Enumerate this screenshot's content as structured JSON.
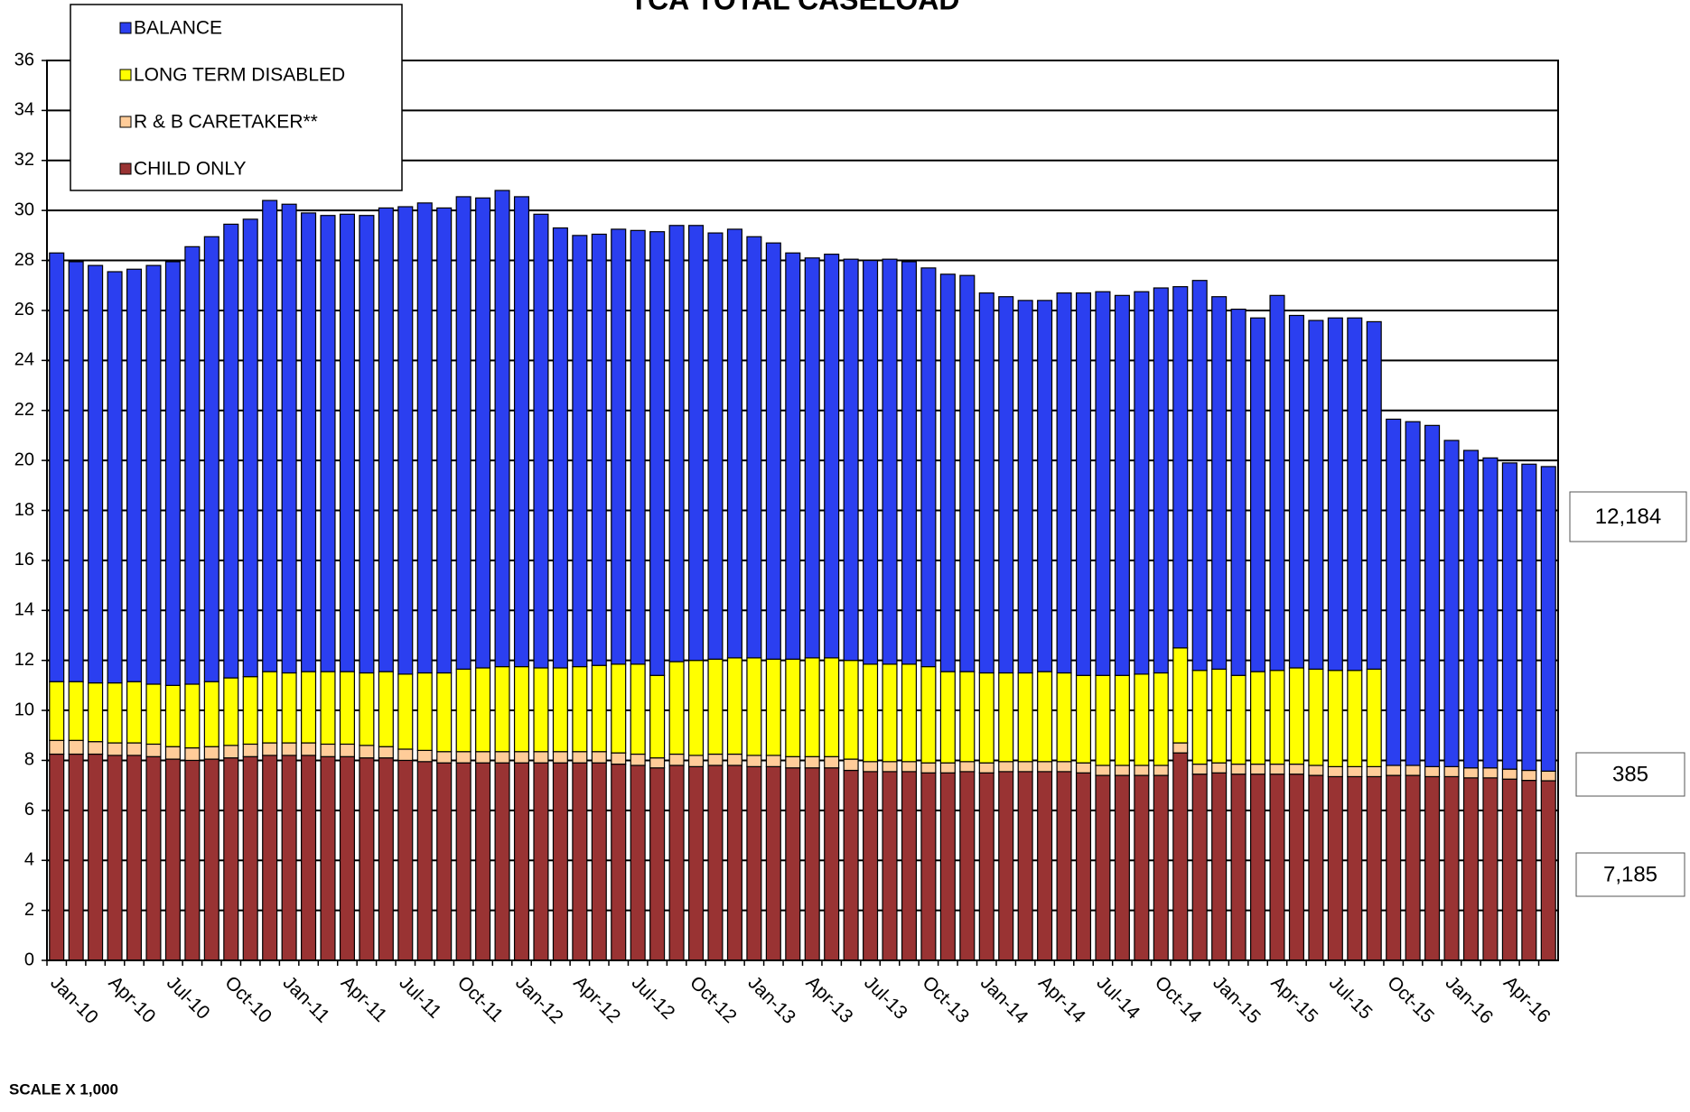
{
  "chart_data": {
    "type": "stacked_bar",
    "title": "TCA TOTAL CASELOAD",
    "annotation": "SCALE X 1,000",
    "categories": [
      "Jan-10",
      null,
      null,
      "Apr-10",
      null,
      null,
      "Jul-10",
      null,
      null,
      "Oct-10",
      null,
      null,
      "Jan-11",
      null,
      null,
      "Apr-11",
      null,
      null,
      "Jul-11",
      null,
      null,
      "Oct-11",
      null,
      null,
      "Jan-12",
      null,
      null,
      "Apr-12",
      null,
      null,
      "Jul-12",
      null,
      null,
      "Oct-12",
      null,
      null,
      "Jan-13",
      null,
      null,
      "Apr-13",
      null,
      null,
      "Jul-13",
      null,
      null,
      "Oct-13",
      null,
      null,
      "Jan-14",
      null,
      null,
      "Apr-14",
      null,
      null,
      "Jul-14",
      null,
      null,
      "Oct-14",
      null,
      null,
      "Jan-15",
      null,
      null,
      "Apr-15",
      null,
      null,
      "Jul-15",
      null,
      null,
      "Oct-15",
      null,
      null,
      "Jan-16",
      null,
      null,
      "Apr-16",
      null,
      null
    ],
    "series": [
      {
        "name": "CHILD ONLY",
        "color": "#993333",
        "values": [
          8.25,
          8.25,
          8.25,
          8.2,
          8.2,
          8.15,
          8.05,
          8.0,
          8.05,
          8.1,
          8.15,
          8.2,
          8.2,
          8.2,
          8.15,
          8.15,
          8.1,
          8.1,
          8.0,
          7.95,
          7.9,
          7.9,
          7.9,
          7.9,
          7.9,
          7.9,
          7.9,
          7.9,
          7.9,
          7.85,
          7.8,
          7.7,
          7.8,
          7.75,
          7.8,
          7.8,
          7.75,
          7.75,
          7.7,
          7.7,
          7.7,
          7.6,
          7.55,
          7.55,
          7.55,
          7.5,
          7.5,
          7.55,
          7.5,
          7.55,
          7.55,
          7.55,
          7.55,
          7.5,
          7.4,
          7.4,
          7.4,
          7.4,
          8.3,
          7.45,
          7.5,
          7.45,
          7.45,
          7.45,
          7.45,
          7.4,
          7.35,
          7.35,
          7.35,
          7.4,
          7.4,
          7.35,
          7.35,
          7.3,
          7.3,
          7.25,
          7.2,
          7.185
        ],
        "value_labels": [
          null,
          null,
          null,
          null,
          null,
          null,
          null,
          null,
          null,
          null,
          null,
          null,
          null,
          null,
          null,
          null,
          null,
          null,
          null,
          null,
          null,
          null,
          null,
          null,
          null,
          null,
          null,
          null,
          null,
          null,
          null,
          null,
          null,
          null,
          null,
          null,
          null,
          null,
          null,
          null,
          null,
          null,
          null,
          null,
          null,
          null,
          null,
          null,
          null,
          null,
          null,
          null,
          null,
          null,
          null,
          null,
          null,
          null,
          null,
          null,
          null,
          null,
          null,
          null,
          null,
          null,
          null,
          null,
          null,
          null,
          null,
          null,
          null,
          null,
          null,
          null,
          null,
          "7,185"
        ]
      },
      {
        "name": "R & B CARETAKER**",
        "color": "#ffcc99",
        "values": [
          0.55,
          0.55,
          0.5,
          0.5,
          0.5,
          0.5,
          0.5,
          0.5,
          0.5,
          0.5,
          0.5,
          0.5,
          0.5,
          0.5,
          0.5,
          0.5,
          0.5,
          0.45,
          0.45,
          0.45,
          0.45,
          0.45,
          0.45,
          0.45,
          0.45,
          0.45,
          0.45,
          0.45,
          0.45,
          0.45,
          0.45,
          0.4,
          0.45,
          0.45,
          0.45,
          0.45,
          0.45,
          0.45,
          0.45,
          0.45,
          0.45,
          0.45,
          0.4,
          0.4,
          0.4,
          0.4,
          0.4,
          0.4,
          0.4,
          0.4,
          0.4,
          0.4,
          0.4,
          0.4,
          0.4,
          0.4,
          0.4,
          0.4,
          0.4,
          0.4,
          0.4,
          0.4,
          0.4,
          0.4,
          0.4,
          0.4,
          0.4,
          0.4,
          0.4,
          0.4,
          0.4,
          0.4,
          0.4,
          0.4,
          0.4,
          0.4,
          0.4,
          0.385
        ],
        "value_labels": [
          null,
          null,
          null,
          null,
          null,
          null,
          null,
          null,
          null,
          null,
          null,
          null,
          null,
          null,
          null,
          null,
          null,
          null,
          null,
          null,
          null,
          null,
          null,
          null,
          null,
          null,
          null,
          null,
          null,
          null,
          null,
          null,
          null,
          null,
          null,
          null,
          null,
          null,
          null,
          null,
          null,
          null,
          null,
          null,
          null,
          null,
          null,
          null,
          null,
          null,
          null,
          null,
          null,
          null,
          null,
          null,
          null,
          null,
          null,
          null,
          null,
          null,
          null,
          null,
          null,
          null,
          null,
          null,
          null,
          null,
          null,
          null,
          null,
          null,
          null,
          null,
          null,
          "385"
        ]
      },
      {
        "name": "LONG TERM DISABLED",
        "color": "#ffff00",
        "values": [
          2.35,
          2.35,
          2.35,
          2.4,
          2.45,
          2.4,
          2.45,
          2.55,
          2.6,
          2.7,
          2.7,
          2.85,
          2.8,
          2.85,
          2.9,
          2.9,
          2.9,
          3.0,
          3.0,
          3.1,
          3.15,
          3.3,
          3.35,
          3.4,
          3.4,
          3.35,
          3.35,
          3.4,
          3.45,
          3.55,
          3.6,
          3.3,
          3.7,
          3.8,
          3.8,
          3.85,
          3.9,
          3.85,
          3.9,
          3.95,
          3.95,
          3.95,
          3.9,
          3.9,
          3.9,
          3.85,
          3.65,
          3.6,
          3.6,
          3.55,
          3.55,
          3.6,
          3.55,
          3.5,
          3.6,
          3.6,
          3.65,
          3.7,
          3.8,
          3.75,
          3.75,
          3.55,
          3.7,
          3.75,
          3.85,
          3.85,
          3.85,
          3.85,
          3.9,
          0,
          0,
          0,
          0,
          0,
          0,
          0,
          0,
          0
        ]
      },
      {
        "name": "BALANCE",
        "color": "#2b3ff0",
        "values": [
          17.15,
          16.8,
          16.7,
          16.45,
          16.5,
          16.75,
          16.95,
          17.5,
          17.8,
          18.15,
          18.3,
          18.85,
          18.75,
          18.35,
          18.25,
          18.3,
          18.3,
          18.55,
          18.7,
          18.8,
          18.6,
          18.9,
          18.8,
          19.05,
          18.8,
          18.15,
          17.6,
          17.25,
          17.25,
          17.4,
          17.35,
          17.75,
          17.45,
          17.4,
          17.05,
          17.15,
          16.85,
          16.65,
          16.25,
          16.0,
          16.15,
          16.05,
          16.15,
          16.2,
          16.1,
          15.95,
          15.9,
          15.85,
          15.2,
          15.05,
          14.9,
          14.85,
          15.2,
          15.3,
          15.35,
          15.2,
          15.3,
          15.4,
          14.45,
          15.6,
          14.9,
          14.65,
          14.15,
          15.0,
          14.1,
          13.95,
          14.1,
          14.1,
          13.9,
          13.85,
          13.75,
          13.65,
          13.05,
          12.7,
          12.4,
          12.25,
          12.25,
          12.184
        ],
        "value_labels": [
          null,
          null,
          null,
          null,
          null,
          null,
          null,
          null,
          null,
          null,
          null,
          null,
          null,
          null,
          null,
          null,
          null,
          null,
          null,
          null,
          null,
          null,
          null,
          null,
          null,
          null,
          null,
          null,
          null,
          null,
          null,
          null,
          null,
          null,
          null,
          null,
          null,
          null,
          null,
          null,
          null,
          null,
          null,
          null,
          null,
          null,
          null,
          null,
          null,
          null,
          null,
          null,
          null,
          null,
          null,
          null,
          null,
          null,
          null,
          null,
          null,
          null,
          null,
          null,
          null,
          null,
          null,
          null,
          null,
          null,
          null,
          null,
          null,
          null,
          null,
          null,
          null,
          "12,184"
        ]
      }
    ],
    "ylim": [
      0,
      36
    ],
    "yticks": [
      0,
      2,
      4,
      6,
      8,
      10,
      12,
      14,
      16,
      18,
      20,
      22,
      24,
      26,
      28,
      30,
      32,
      34,
      36
    ],
    "grid": true,
    "legend_position": "top-left"
  }
}
